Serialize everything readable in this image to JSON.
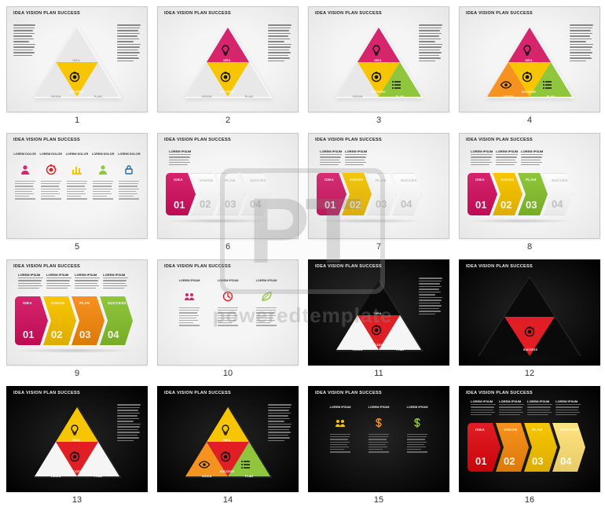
{
  "global_title": "IDEA VISION PLAN SUCCESS",
  "watermark": {
    "initials": "PT",
    "text": "poweredtemplate"
  },
  "colors": {
    "magenta": "#d6246d",
    "yellow": "#f7c600",
    "orange": "#f69220",
    "green": "#8fc63d",
    "red": "#e21e25",
    "grey_light": "#e8e8e8",
    "grey_dark": "#0a0a0a"
  },
  "labels": {
    "idea": "IDEA",
    "vision": "VISION",
    "plan": "PLAN",
    "success": "SUCCESS",
    "lorem": "LOREM DOLOR",
    "lorem_w": "LOREM IPSUM"
  },
  "icons": {
    "bulb": "bulb",
    "target": "target",
    "eye": "eye",
    "list": "list",
    "person": "person",
    "chart": "chart",
    "gear": "gear",
    "lock": "lock",
    "clock": "clock",
    "dollar": "dollar",
    "leaf": "leaf",
    "team": "team"
  },
  "slides": [
    {
      "num": 1,
      "bg": "light",
      "layout": "pyramid",
      "side_text": "both",
      "tris": {
        "top": "ghost",
        "mid": "yellow",
        "botL": "ghost",
        "botR": "ghost"
      },
      "mid_icon": "target",
      "mid_label": "SUCCESS",
      "top_label": "IDEA",
      "botL_label": "VISION",
      "botR_label": "PLAN",
      "ghost_labels": true
    },
    {
      "num": 2,
      "bg": "light",
      "layout": "pyramid",
      "side_text": "right",
      "tris": {
        "top": "magenta",
        "mid": "yellow",
        "botL": "ghost",
        "botR": "ghost"
      },
      "top_icon": "bulb",
      "top_label": "IDEA",
      "mid_icon": "target",
      "mid_label": "SUCCESS",
      "botL_label": "VISION",
      "botR_label": "PLAN",
      "ghost_labels": true
    },
    {
      "num": 3,
      "bg": "light",
      "layout": "pyramid",
      "side_text": "right",
      "tris": {
        "top": "magenta",
        "mid": "yellow",
        "botL": "ghost",
        "botR": "green"
      },
      "top_icon": "bulb",
      "top_label": "IDEA",
      "mid_icon": "target",
      "mid_label": "SUCCESS",
      "botR_icon": "list",
      "botR_label": "PLAN",
      "botL_label": "VISION",
      "ghost_labels": true
    },
    {
      "num": 4,
      "bg": "light",
      "layout": "pyramid",
      "side_text": "right",
      "tris": {
        "top": "magenta",
        "mid": "yellow",
        "botL": "orange",
        "botR": "green"
      },
      "top_icon": "bulb",
      "top_label": "IDEA",
      "mid_icon": "target",
      "mid_label": "SUCCESS",
      "botL_icon": "eye",
      "botL_label": "VISION",
      "botR_icon": "list",
      "botR_label": "PLAN"
    },
    {
      "num": 5,
      "bg": "light",
      "layout": "icons5",
      "hdr": "LOREM DOLOR",
      "cols": [
        {
          "color": "#d6246d",
          "icon": "person"
        },
        {
          "color": "#e21e25",
          "icon": "target"
        },
        {
          "color": "#f7c600",
          "icon": "chart"
        },
        {
          "color": "#8fc63d",
          "icon": "person"
        },
        {
          "color": "#1f6aa6",
          "icon": "lock"
        }
      ]
    },
    {
      "num": 6,
      "bg": "light",
      "layout": "chevrons",
      "filled": 1,
      "total": 4,
      "items": [
        {
          "label": "IDEA",
          "n": "01",
          "color": "#d6246d"
        },
        {
          "label": "VISION",
          "n": "02",
          "color": "ghost"
        },
        {
          "label": "PLAN",
          "n": "03",
          "color": "ghost"
        },
        {
          "label": "SUCCESS",
          "n": "04",
          "color": "ghost"
        }
      ]
    },
    {
      "num": 7,
      "bg": "light",
      "layout": "chevrons",
      "filled": 2,
      "total": 4,
      "items": [
        {
          "label": "IDEA",
          "n": "01",
          "color": "#d6246d"
        },
        {
          "label": "VISION",
          "n": "02",
          "color": "#f7c600"
        },
        {
          "label": "PLAN",
          "n": "03",
          "color": "ghost"
        },
        {
          "label": "SUCCESS",
          "n": "04",
          "color": "ghost"
        }
      ]
    },
    {
      "num": 8,
      "bg": "light",
      "layout": "chevrons",
      "filled": 3,
      "total": 4,
      "items": [
        {
          "label": "IDEA",
          "n": "01",
          "color": "#d6246d"
        },
        {
          "label": "VISION",
          "n": "02",
          "color": "#f7c600"
        },
        {
          "label": "PLAN",
          "n": "03",
          "color": "#8fc63d"
        },
        {
          "label": "SUCCESS",
          "n": "04",
          "color": "ghost"
        }
      ]
    },
    {
      "num": 9,
      "bg": "light",
      "layout": "chevrons",
      "filled": 4,
      "total": 4,
      "bigger": true,
      "items": [
        {
          "label": "IDEA",
          "n": "01",
          "color": "#d6246d"
        },
        {
          "label": "VISION",
          "n": "02",
          "color": "#f7c600"
        },
        {
          "label": "PLAN",
          "n": "03",
          "color": "#f69220"
        },
        {
          "label": "SUCCESS",
          "n": "04",
          "color": "#8fc63d"
        }
      ]
    },
    {
      "num": 10,
      "bg": "light",
      "layout": "icons3",
      "hdr": "LOREM IPSUM",
      "cols": [
        {
          "color": "#d6246d",
          "icon": "team"
        },
        {
          "color": "#e21e25",
          "icon": "clock"
        },
        {
          "color": "#8fc63d",
          "icon": "leaf"
        }
      ]
    },
    {
      "num": 11,
      "bg": "dark",
      "layout": "pyramid",
      "side_text": "right",
      "tris": {
        "top": "ghostd",
        "mid": "red",
        "botL": "white",
        "botR": "white"
      },
      "mid_icon": "target",
      "mid_label": "SUCCESS",
      "top_label": "IDEA",
      "botL_label": "VISION",
      "botR_label": "PLAN",
      "ghost_labels": true
    },
    {
      "num": 12,
      "bg": "dark",
      "layout": "pyramid",
      "side_text": "none",
      "tris": {
        "top": "ghostd",
        "mid": "red",
        "botL": "ghostd",
        "botR": "ghostd"
      },
      "mid_icon": "target",
      "mid_label": "SUCCESS"
    },
    {
      "num": 13,
      "bg": "dark",
      "layout": "pyramid",
      "side_text": "right",
      "tris": {
        "top": "yellow",
        "mid": "red",
        "botL": "white",
        "botR": "white"
      },
      "top_icon": "bulb",
      "top_label": "IDEA",
      "mid_icon": "target",
      "mid_label": "SUCCESS",
      "botL_label": "VISION",
      "botR_label": "PLAN",
      "ghost_labels": true
    },
    {
      "num": 14,
      "bg": "dark",
      "layout": "pyramid",
      "side_text": "right",
      "tris": {
        "top": "yellow",
        "mid": "red",
        "botL": "orange",
        "botR": "green"
      },
      "top_icon": "bulb",
      "top_label": "IDEA",
      "mid_icon": "target",
      "mid_label": "SUCCESS",
      "botL_icon": "eye",
      "botL_label": "VISION",
      "botR_icon": "list",
      "botR_label": "PLAN"
    },
    {
      "num": 15,
      "bg": "dark",
      "layout": "icons3",
      "hdr": "LOREM IPSUM",
      "cols": [
        {
          "color": "#f7c600",
          "icon": "team"
        },
        {
          "color": "#f69220",
          "icon": "dollar"
        },
        {
          "color": "#8fc63d",
          "icon": "dollar"
        }
      ]
    },
    {
      "num": 16,
      "bg": "dark",
      "layout": "chevrons",
      "filled": 4,
      "total": 4,
      "bigger": true,
      "items": [
        {
          "label": "IDEA",
          "n": "01",
          "color": "#e21e25"
        },
        {
          "label": "VISION",
          "n": "02",
          "color": "#f69220"
        },
        {
          "label": "PLAN",
          "n": "03",
          "color": "#f7c600"
        },
        {
          "label": "SUCCESS",
          "n": "04",
          "color": "#ffe481"
        }
      ]
    }
  ]
}
